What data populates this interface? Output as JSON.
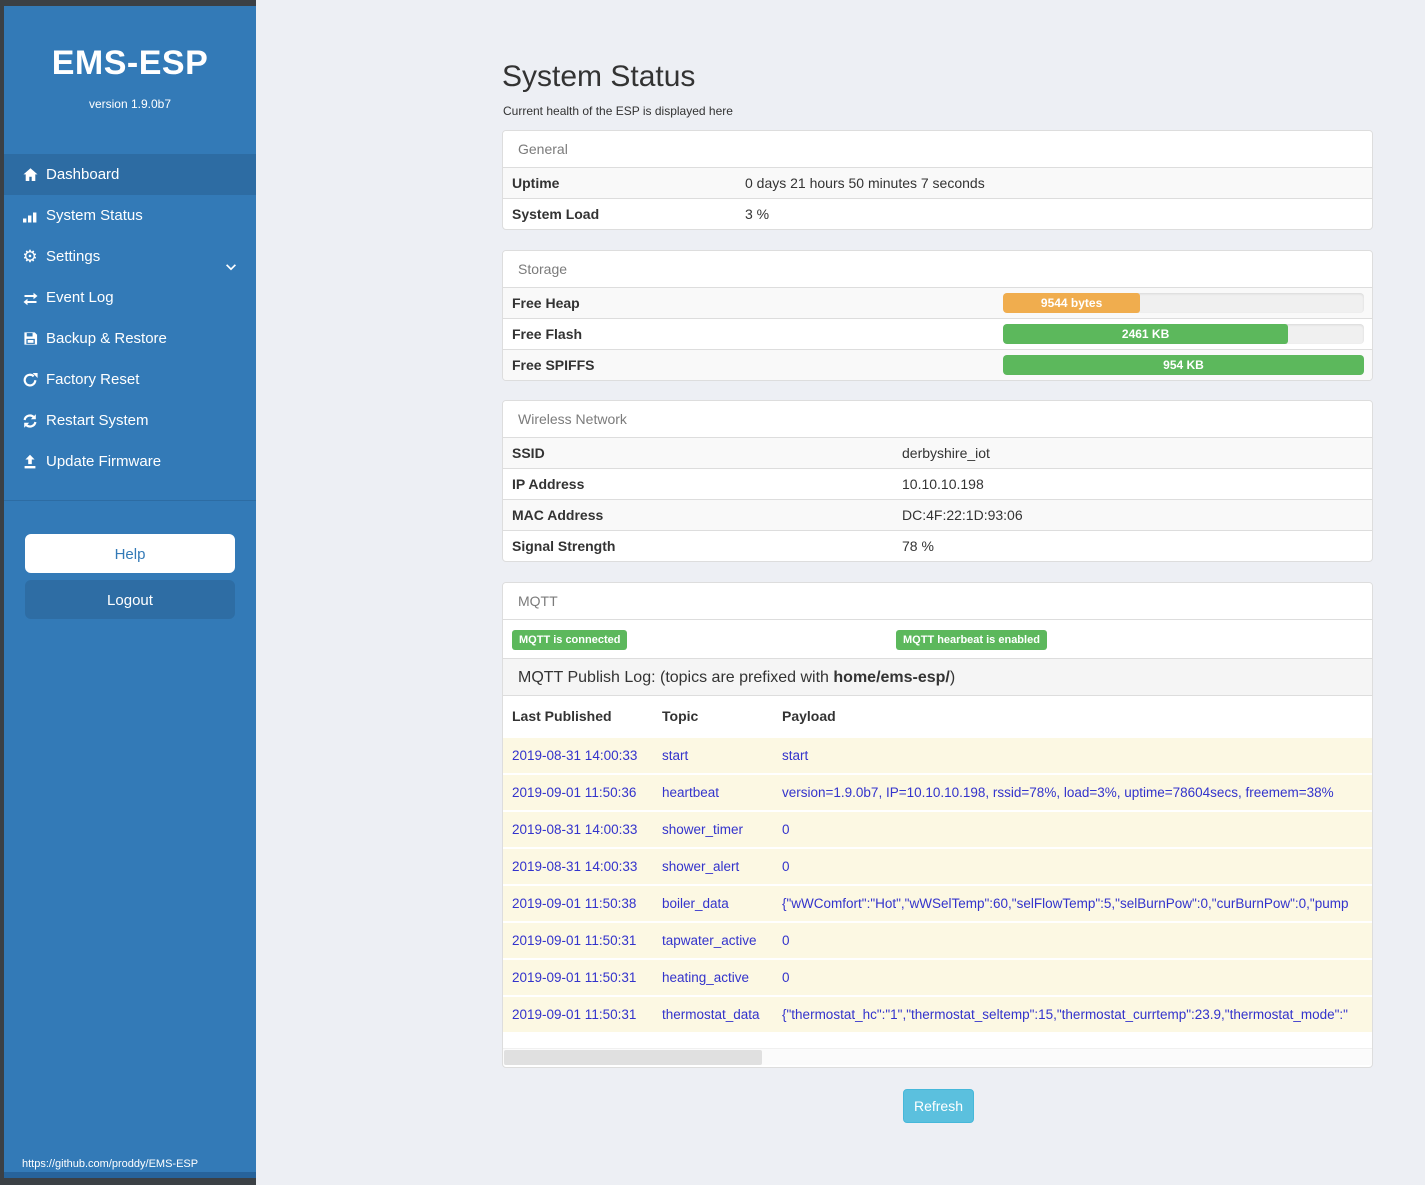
{
  "colors": {
    "sidebar_blue": "#337ab7",
    "sidebar_active": "#2d6ca3",
    "badge_green": "#5cb85c",
    "bar_orange": "#f0ad4e",
    "bar_green": "#5cb85c",
    "refresh_blue": "#5bc0de",
    "log_text_blue": "#3333cc",
    "log_row_bg": "#fcf8e3"
  },
  "sidebar": {
    "title": "EMS-ESP",
    "version": "version 1.9.0b7",
    "items": [
      {
        "label": "Dashboard",
        "icon": "home-icon",
        "active": true
      },
      {
        "label": "System Status",
        "icon": "system-status-icon",
        "active": false
      },
      {
        "label": "Settings",
        "icon": "gear-icon",
        "active": false,
        "chevron": true
      },
      {
        "label": "Event Log",
        "icon": "exchange-icon",
        "active": false
      },
      {
        "label": "Backup & Restore",
        "icon": "save-icon",
        "active": false
      },
      {
        "label": "Factory Reset",
        "icon": "rotate-icon",
        "active": false
      },
      {
        "label": "Restart System",
        "icon": "sync-icon",
        "active": false
      },
      {
        "label": "Update Firmware",
        "icon": "upload-icon",
        "active": false
      }
    ],
    "help_label": "Help",
    "logout_label": "Logout",
    "footer_link": "https://github.com/proddy/EMS-ESP"
  },
  "page": {
    "title": "System Status",
    "subtitle": "Current health of the ESP is displayed here",
    "refresh_label": "Refresh"
  },
  "general": {
    "heading": "General",
    "rows": [
      {
        "label": "Uptime",
        "value": "0 days 21 hours 50 minutes 7 seconds"
      },
      {
        "label": "System Load",
        "value": "3 %"
      }
    ]
  },
  "storage": {
    "heading": "Storage",
    "rows": [
      {
        "label": "Free Heap",
        "bar_label": "9544 bytes",
        "percent": 38,
        "color": "#f0ad4e"
      },
      {
        "label": "Free Flash",
        "bar_label": "2461 KB",
        "percent": 79,
        "color": "#5cb85c"
      },
      {
        "label": "Free SPIFFS",
        "bar_label": "954 KB",
        "percent": 100,
        "color": "#5cb85c"
      }
    ]
  },
  "wireless": {
    "heading": "Wireless Network",
    "rows": [
      {
        "label": "SSID",
        "value": "derbyshire_iot"
      },
      {
        "label": "IP Address",
        "value": "10.10.10.198"
      },
      {
        "label": "MAC Address",
        "value": "DC:4F:22:1D:93:06"
      },
      {
        "label": "Signal Strength",
        "value": "78 %"
      }
    ]
  },
  "mqtt": {
    "heading": "MQTT",
    "badges": [
      "MQTT is connected",
      "MQTT hearbeat is enabled"
    ],
    "publog_prefix": "MQTT Publish Log: (topics are prefixed with ",
    "publog_bold": "home/ems-esp/",
    "publog_suffix": ")",
    "columns": [
      "Last Published",
      "Topic",
      "Payload"
    ],
    "rows": [
      {
        "date": "2019-08-31 14:00:33",
        "topic": "start",
        "payload": "start"
      },
      {
        "date": "2019-09-01 11:50:36",
        "topic": "heartbeat",
        "payload": "version=1.9.0b7, IP=10.10.10.198, rssid=78%, load=3%, uptime=78604secs, freemem=38%"
      },
      {
        "date": "2019-08-31 14:00:33",
        "topic": "shower_timer",
        "payload": "0"
      },
      {
        "date": "2019-08-31 14:00:33",
        "topic": "shower_alert",
        "payload": "0"
      },
      {
        "date": "2019-09-01 11:50:38",
        "topic": "boiler_data",
        "payload": "{\"wWComfort\":\"Hot\",\"wWSelTemp\":60,\"selFlowTemp\":5,\"selBurnPow\":0,\"curBurnPow\":0,\"pump"
      },
      {
        "date": "2019-09-01 11:50:31",
        "topic": "tapwater_active",
        "payload": "0"
      },
      {
        "date": "2019-09-01 11:50:31",
        "topic": "heating_active",
        "payload": "0"
      },
      {
        "date": "2019-09-01 11:50:31",
        "topic": "thermostat_data",
        "payload": "{\"thermostat_hc\":\"1\",\"thermostat_seltemp\":15,\"thermostat_currtemp\":23.9,\"thermostat_mode\":\""
      }
    ]
  }
}
